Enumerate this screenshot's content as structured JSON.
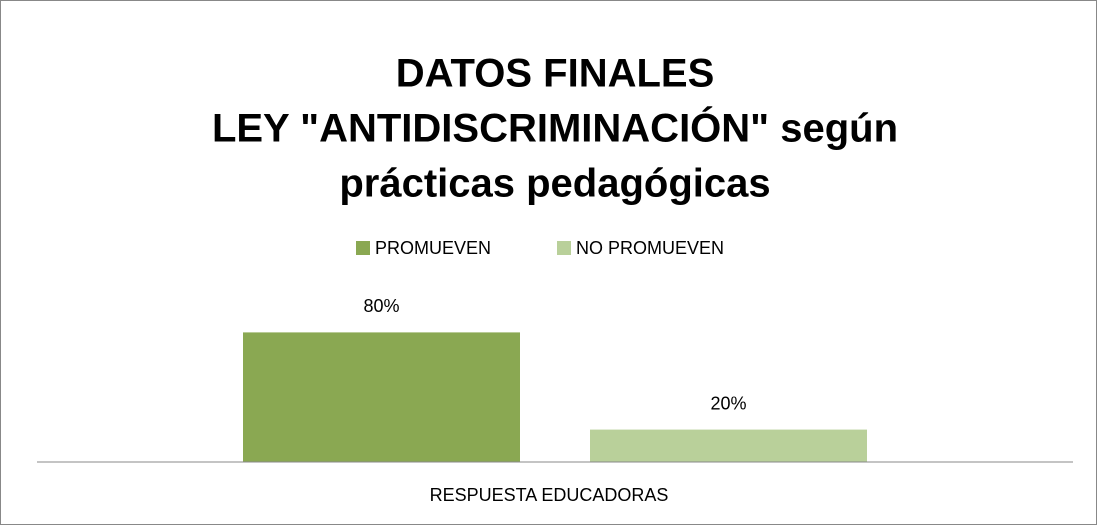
{
  "chart_data": {
    "type": "bar",
    "title": [
      "DATOS FINALES",
      "LEY \"ANTIDISCRIMINACIÓN\" según",
      "prácticas pedagógicas"
    ],
    "categories": [
      "RESPUESTA EDUCADORAS"
    ],
    "series": [
      {
        "name": "PROMUEVEN",
        "color": "#8aa852",
        "values": [
          80
        ],
        "value_labels": [
          "80%"
        ]
      },
      {
        "name": "NO PROMUEVEN",
        "color": "#b9d09a",
        "values": [
          20
        ],
        "value_labels": [
          "20%"
        ]
      }
    ],
    "ylim": [
      0,
      100
    ],
    "legend": "top"
  }
}
